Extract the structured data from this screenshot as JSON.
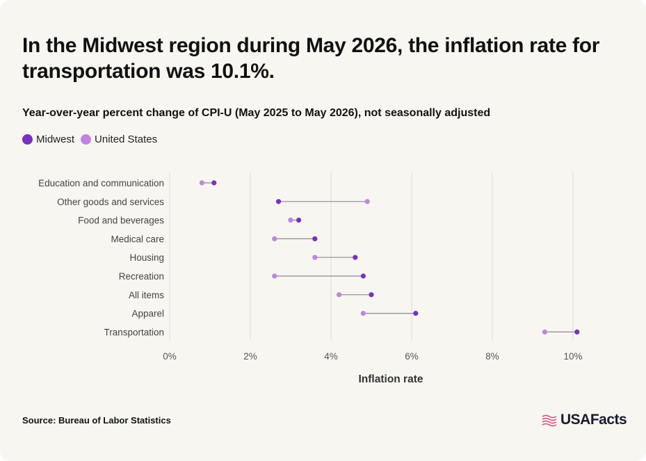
{
  "header": {
    "title": "In the Midwest region during May 2026, the inflation rate for transportation was 10.1%.",
    "subtitle": "Year-over-year percent change of CPI-U (May 2025 to May 2026), not seasonally adjusted"
  },
  "legend": [
    {
      "label": "Midwest",
      "color": "#7b2fbe"
    },
    {
      "label": "United States",
      "color": "#c084e0"
    }
  ],
  "footer": {
    "source": "Source: Bureau of Labor Statistics",
    "logo_text": "USAFacts"
  },
  "chart_data": {
    "type": "dumbbell",
    "categories": [
      "Education and communication",
      "Other goods and services",
      "Food and beverages",
      "Medical care",
      "Housing",
      "Recreation",
      "All items",
      "Apparel",
      "Transportation"
    ],
    "series": [
      {
        "name": "Midwest",
        "color": "#7b2fbe",
        "values": [
          1.1,
          2.7,
          3.2,
          3.6,
          4.6,
          4.8,
          5.0,
          6.1,
          10.1
        ]
      },
      {
        "name": "United States",
        "color": "#c084e0",
        "values": [
          0.8,
          4.9,
          3.0,
          2.6,
          3.6,
          2.6,
          4.2,
          4.8,
          9.3
        ]
      }
    ],
    "xticks": [
      0,
      2,
      4,
      6,
      8,
      10
    ],
    "xtick_labels": [
      "0%",
      "2%",
      "4%",
      "6%",
      "8%",
      "10%"
    ],
    "xlim": [
      0,
      10.5
    ],
    "xlabel": "Inflation rate",
    "grid": true
  }
}
